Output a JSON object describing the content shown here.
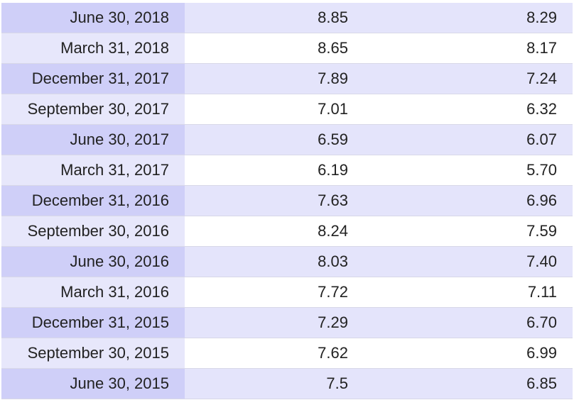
{
  "table": {
    "rows": [
      {
        "date": "June 30, 2018",
        "col1": "8.85",
        "col2": "8.29"
      },
      {
        "date": "March 31, 2018",
        "col1": "8.65",
        "col2": "8.17"
      },
      {
        "date": "December 31, 2017",
        "col1": "7.89",
        "col2": "7.24"
      },
      {
        "date": "September 30, 2017",
        "col1": "7.01",
        "col2": "6.32"
      },
      {
        "date": "June 30, 2017",
        "col1": "6.59",
        "col2": "6.07"
      },
      {
        "date": "March 31, 2017",
        "col1": "6.19",
        "col2": "5.70"
      },
      {
        "date": "December 31, 2016",
        "col1": "7.63",
        "col2": "6.96"
      },
      {
        "date": "September 30, 2016",
        "col1": "8.24",
        "col2": "7.59"
      },
      {
        "date": "June 30, 2016",
        "col1": "8.03",
        "col2": "7.40"
      },
      {
        "date": "March 31, 2016",
        "col1": "7.72",
        "col2": "7.11"
      },
      {
        "date": "December 31, 2015",
        "col1": "7.29",
        "col2": "6.70"
      },
      {
        "date": "September 30, 2015",
        "col1": "7.62",
        "col2": "6.99"
      },
      {
        "date": "June 30, 2015",
        "col1": "7.5",
        "col2": "6.85"
      }
    ]
  },
  "colors": {
    "row_odd_date_bg": "#cfcff8",
    "row_odd_value_bg": "#e4e4fb",
    "row_even_date_bg": "#e7e7fb",
    "row_even_value_bg": "#ffffff"
  }
}
